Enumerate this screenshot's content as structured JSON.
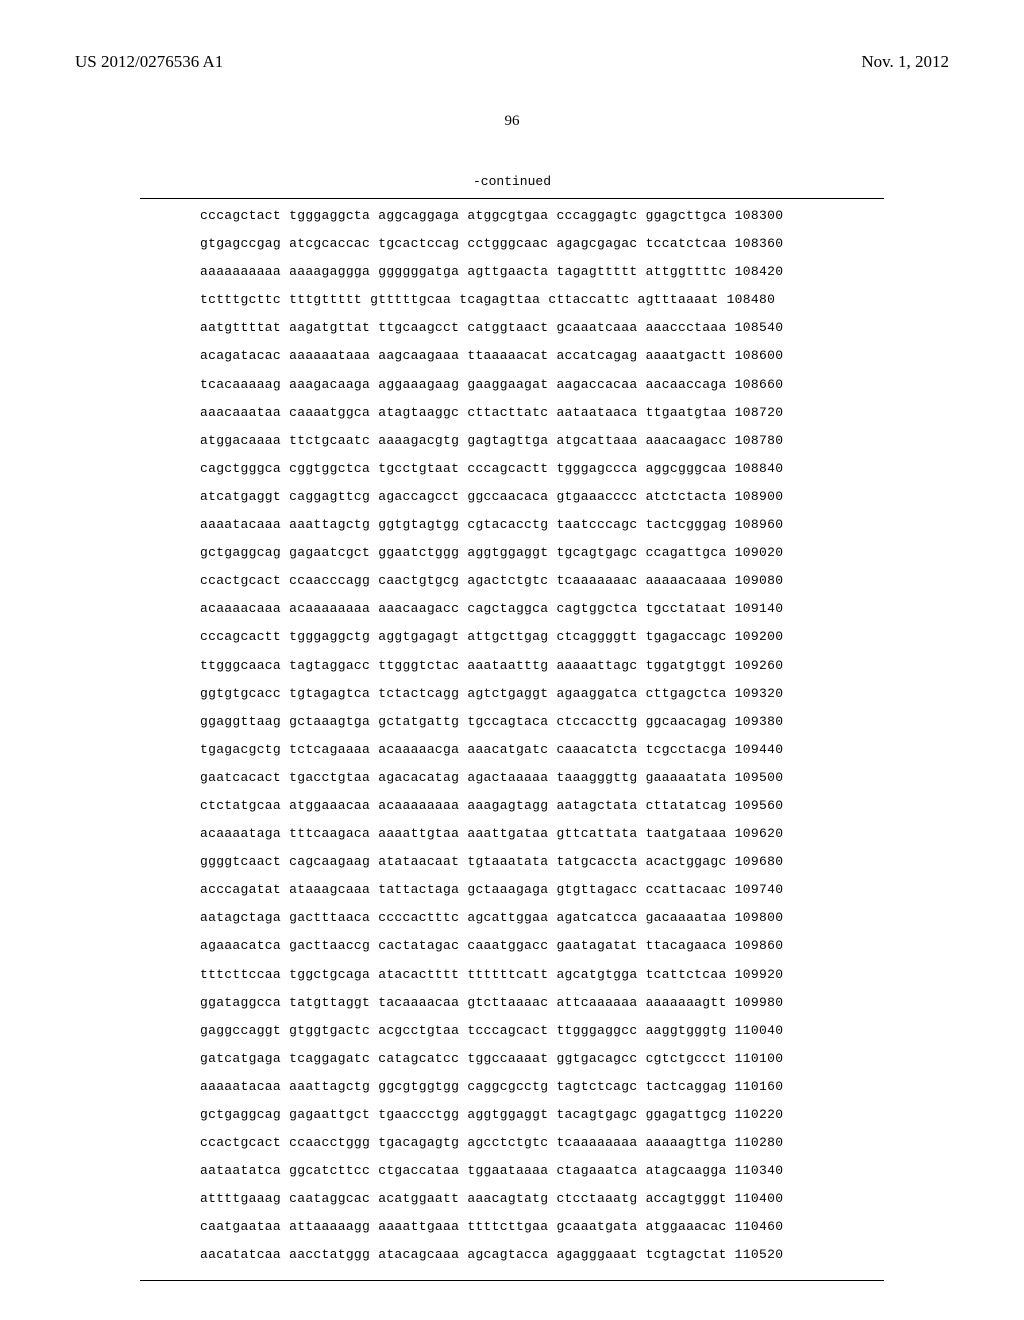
{
  "header": {
    "pubNumber": "US 2012/0276536 A1",
    "pubDate": "Nov. 1, 2012"
  },
  "pageNumber": "96",
  "continuedLabel": "-continued",
  "sequence": {
    "rows": [
      {
        "b1": "cccagctact",
        "b2": "tgggaggcta",
        "b3": "aggcaggaga",
        "b4": "atggcgtgaa",
        "b5": "cccaggagtc",
        "b6": "ggagcttgca",
        "pos": "108300"
      },
      {
        "b1": "gtgagccgag",
        "b2": "atcgcaccac",
        "b3": "tgcactccag",
        "b4": "cctgggcaac",
        "b5": "agagcgagac",
        "b6": "tccatctcaa",
        "pos": "108360"
      },
      {
        "b1": "aaaaaaaaaa",
        "b2": "aaaagaggga",
        "b3": "ggggggatga",
        "b4": "agttgaacta",
        "b5": "tagagttttt",
        "b6": "attggttttc",
        "pos": "108420"
      },
      {
        "b1": "tctttgcttc",
        "b2": "tttgttttt",
        "b3": "gtttttgcaa",
        "b4": "tcagagttaa",
        "b5": "cttaccattc",
        "b6": "agtttaaaat",
        "pos": "108480"
      },
      {
        "b1": "aatgttttat",
        "b2": "aagatgttat",
        "b3": "ttgcaagcct",
        "b4": "catggtaact",
        "b5": "gcaaatcaaa",
        "b6": "aaaccctaaa",
        "pos": "108540"
      },
      {
        "b1": "acagatacac",
        "b2": "aaaaaataaa",
        "b3": "aagcaagaaa",
        "b4": "ttaaaaacat",
        "b5": "accatcagag",
        "b6": "aaaatgactt",
        "pos": "108600"
      },
      {
        "b1": "tcacaaaaag",
        "b2": "aaagacaaga",
        "b3": "aggaaagaag",
        "b4": "gaaggaagat",
        "b5": "aagaccacaa",
        "b6": "aacaaccaga",
        "pos": "108660"
      },
      {
        "b1": "aaacaaataa",
        "b2": "caaaatggca",
        "b3": "atagtaaggc",
        "b4": "cttacttatc",
        "b5": "aataataaca",
        "b6": "ttgaatgtaa",
        "pos": "108720"
      },
      {
        "b1": "atggacaaaa",
        "b2": "ttctgcaatc",
        "b3": "aaaagacgtg",
        "b4": "gagtagttga",
        "b5": "atgcattaaa",
        "b6": "aaacaagacc",
        "pos": "108780"
      },
      {
        "b1": "cagctgggca",
        "b2": "cggtggctca",
        "b3": "tgcctgtaat",
        "b4": "cccagcactt",
        "b5": "tgggagccca",
        "b6": "aggcgggcaa",
        "pos": "108840"
      },
      {
        "b1": "atcatgaggt",
        "b2": "caggagttcg",
        "b3": "agaccagcct",
        "b4": "ggccaacaca",
        "b5": "gtgaaacccc",
        "b6": "atctctacta",
        "pos": "108900"
      },
      {
        "b1": "aaaatacaaa",
        "b2": "aaattagctg",
        "b3": "ggtgtagtgg",
        "b4": "cgtacacctg",
        "b5": "taatcccagc",
        "b6": "tactcgggag",
        "pos": "108960"
      },
      {
        "b1": "gctgaggcag",
        "b2": "gagaatcgct",
        "b3": "ggaatctggg",
        "b4": "aggtggaggt",
        "b5": "tgcagtgagc",
        "b6": "ccagattgca",
        "pos": "109020"
      },
      {
        "b1": "ccactgcact",
        "b2": "ccaacccagg",
        "b3": "caactgtgcg",
        "b4": "agactctgtc",
        "b5": "tcaaaaaaac",
        "b6": "aaaaacaaaa",
        "pos": "109080"
      },
      {
        "b1": "acaaaacaaa",
        "b2": "acaaaaaaaa",
        "b3": "aaacaagacc",
        "b4": "cagctaggca",
        "b5": "cagtggctca",
        "b6": "tgcctataat",
        "pos": "109140"
      },
      {
        "b1": "cccagcactt",
        "b2": "tgggaggctg",
        "b3": "aggtgagagt",
        "b4": "attgcttgag",
        "b5": "ctcaggggtt",
        "b6": "tgagaccagc",
        "pos": "109200"
      },
      {
        "b1": "ttgggcaaca",
        "b2": "tagtaggacc",
        "b3": "ttgggtctac",
        "b4": "aaataatttg",
        "b5": "aaaaattagc",
        "b6": "tggatgtggt",
        "pos": "109260"
      },
      {
        "b1": "ggtgtgcacc",
        "b2": "tgtagagtca",
        "b3": "tctactcagg",
        "b4": "agtctgaggt",
        "b5": "agaaggatca",
        "b6": "cttgagctca",
        "pos": "109320"
      },
      {
        "b1": "ggaggttaag",
        "b2": "gctaaagtga",
        "b3": "gctatgattg",
        "b4": "tgccagtaca",
        "b5": "ctccaccttg",
        "b6": "ggcaacagag",
        "pos": "109380"
      },
      {
        "b1": "tgagacgctg",
        "b2": "tctcagaaaa",
        "b3": "acaaaaacga",
        "b4": "aaacatgatc",
        "b5": "caaacatcta",
        "b6": "tcgcctacga",
        "pos": "109440"
      },
      {
        "b1": "gaatcacact",
        "b2": "tgacctgtaa",
        "b3": "agacacatag",
        "b4": "agactaaaaa",
        "b5": "taaagggttg",
        "b6": "gaaaaatata",
        "pos": "109500"
      },
      {
        "b1": "ctctatgcaa",
        "b2": "atggaaacaa",
        "b3": "acaaaaaaaa",
        "b4": "aaagagtagg",
        "b5": "aatagctata",
        "b6": "cttatatcag",
        "pos": "109560"
      },
      {
        "b1": "acaaaataga",
        "b2": "tttcaagaca",
        "b3": "aaaattgtaa",
        "b4": "aaattgataa",
        "b5": "gttcattata",
        "b6": "taatgataaa",
        "pos": "109620"
      },
      {
        "b1": "ggggtcaact",
        "b2": "cagcaagaag",
        "b3": "atataacaat",
        "b4": "tgtaaatata",
        "b5": "tatgcaccta",
        "b6": "acactggagc",
        "pos": "109680"
      },
      {
        "b1": "acccagatat",
        "b2": "ataaagcaaa",
        "b3": "tattactaga",
        "b4": "gctaaagaga",
        "b5": "gtgttagacc",
        "b6": "ccattacaac",
        "pos": "109740"
      },
      {
        "b1": "aatagctaga",
        "b2": "gactttaaca",
        "b3": "ccccactttc",
        "b4": "agcattggaa",
        "b5": "agatcatcca",
        "b6": "gacaaaataa",
        "pos": "109800"
      },
      {
        "b1": "agaaacatca",
        "b2": "gacttaaccg",
        "b3": "cactatagac",
        "b4": "caaatggacc",
        "b5": "gaatagatat",
        "b6": "ttacagaaca",
        "pos": "109860"
      },
      {
        "b1": "tttcttccaa",
        "b2": "tggctgcaga",
        "b3": "atacactttt",
        "b4": "ttttttcatt",
        "b5": "agcatgtgga",
        "b6": "tcattctcaa",
        "pos": "109920"
      },
      {
        "b1": "ggataggcca",
        "b2": "tatgttaggt",
        "b3": "tacaaaacaa",
        "b4": "gtcttaaaac",
        "b5": "attcaaaaaa",
        "b6": "aaaaaaagtt",
        "pos": "109980"
      },
      {
        "b1": "gaggccaggt",
        "b2": "gtggtgactc",
        "b3": "acgcctgtaa",
        "b4": "tcccagcact",
        "b5": "ttgggaggcc",
        "b6": "aaggtgggtg",
        "pos": "110040"
      },
      {
        "b1": "gatcatgaga",
        "b2": "tcaggagatc",
        "b3": "catagcatcc",
        "b4": "tggccaaaat",
        "b5": "ggtgacagcc",
        "b6": "cgtctgccct",
        "pos": "110100"
      },
      {
        "b1": "aaaaatacaa",
        "b2": "aaattagctg",
        "b3": "ggcgtggtgg",
        "b4": "caggcgcctg",
        "b5": "tagtctcagc",
        "b6": "tactcaggag",
        "pos": "110160"
      },
      {
        "b1": "gctgaggcag",
        "b2": "gagaattgct",
        "b3": "tgaaccctgg",
        "b4": "aggtggaggt",
        "b5": "tacagtgagc",
        "b6": "ggagattgcg",
        "pos": "110220"
      },
      {
        "b1": "ccactgcact",
        "b2": "ccaacctggg",
        "b3": "tgacagagtg",
        "b4": "agcctctgtc",
        "b5": "tcaaaaaaaa",
        "b6": "aaaaagttga",
        "pos": "110280"
      },
      {
        "b1": "aataatatca",
        "b2": "ggcatcttcc",
        "b3": "ctgaccataa",
        "b4": "tggaataaaa",
        "b5": "ctagaaatca",
        "b6": "atagcaagga",
        "pos": "110340"
      },
      {
        "b1": "attttgaaag",
        "b2": "caataggcac",
        "b3": "acatggaatt",
        "b4": "aaacagtatg",
        "b5": "ctcctaaatg",
        "b6": "accagtgggt",
        "pos": "110400"
      },
      {
        "b1": "caatgaataa",
        "b2": "attaaaaagg",
        "b3": "aaaattgaaa",
        "b4": "ttttcttgaa",
        "b5": "gcaaatgata",
        "b6": "atggaaacac",
        "pos": "110460"
      },
      {
        "b1": "aacatatcaa",
        "b2": "aacctatggg",
        "b3": "atacagcaaa",
        "b4": "agcagtacca",
        "b5": "agagggaaat",
        "b6": "tcgtagctat",
        "pos": "110520"
      }
    ]
  }
}
